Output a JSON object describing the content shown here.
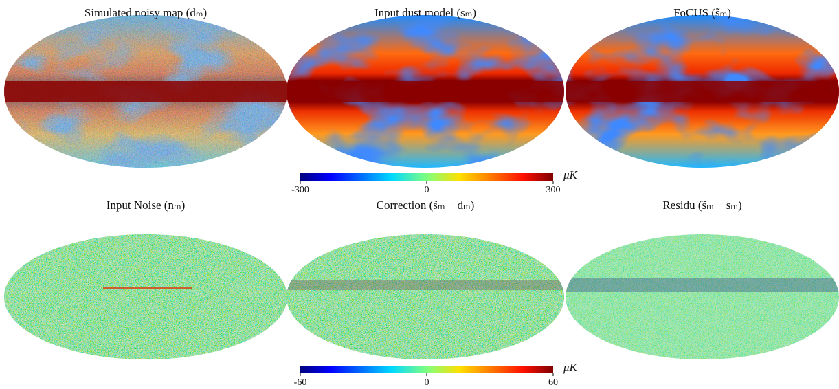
{
  "panels": [
    {
      "title": "Simulated noisy map (dₘ)"
    },
    {
      "title": "Input dust model (sₘ)"
    },
    {
      "title": "FoCUS (s̃ₘ)"
    },
    {
      "title": "Input Noise (nₘ)"
    },
    {
      "title": "Correction (s̃ₘ − dₘ)"
    },
    {
      "title": "Residu (s̃ₘ − sₘ)"
    }
  ],
  "colorbars": [
    {
      "ticks": [
        -300,
        0,
        300
      ],
      "unit": "μK"
    },
    {
      "ticks": [
        -60,
        0,
        60
      ],
      "unit": "μK"
    }
  ]
}
